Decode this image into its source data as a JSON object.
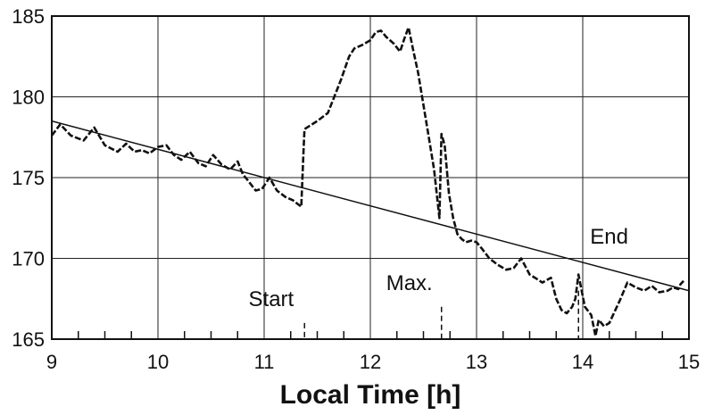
{
  "chart_data": {
    "type": "line",
    "title": "",
    "xlabel": "Local Time [h]",
    "ylabel": "",
    "xlim": [
      9,
      15
    ],
    "ylim": [
      165,
      185
    ],
    "x_ticks": [
      9,
      10,
      11,
      12,
      13,
      14,
      15
    ],
    "y_ticks": [
      165,
      170,
      175,
      180,
      185
    ],
    "grid": true,
    "legend": "none",
    "series": [
      {
        "style": "dashed",
        "x": [
          9.0,
          9.08,
          9.18,
          9.3,
          9.4,
          9.5,
          9.62,
          9.7,
          9.78,
          9.85,
          9.92,
          10.0,
          10.08,
          10.15,
          10.22,
          10.3,
          10.38,
          10.45,
          10.52,
          10.6,
          10.68,
          10.75,
          10.8,
          10.85,
          10.92,
          10.98,
          11.05,
          11.12,
          11.2,
          11.27,
          11.35,
          11.37,
          11.38,
          11.5,
          11.6,
          11.72,
          11.8,
          11.85,
          11.92,
          12.0,
          12.05,
          12.1,
          12.15,
          12.22,
          12.28,
          12.32,
          12.36,
          12.4,
          12.45,
          12.5,
          12.55,
          12.6,
          12.65,
          12.67,
          12.7,
          12.74,
          12.78,
          12.82,
          12.86,
          12.9,
          12.95,
          13.0,
          13.05,
          13.12,
          13.2,
          13.28,
          13.35,
          13.42,
          13.5,
          13.55,
          13.62,
          13.7,
          13.75,
          13.8,
          13.85,
          13.9,
          13.93,
          13.96,
          14.02,
          14.08,
          14.12,
          14.15,
          14.2,
          14.25,
          14.3,
          14.35,
          14.42,
          14.5,
          14.58,
          14.65,
          14.72,
          14.8,
          14.85,
          14.9,
          14.92,
          14.95
        ],
        "y": [
          177.6,
          178.3,
          177.6,
          177.3,
          178.1,
          177.0,
          176.6,
          177.1,
          176.6,
          176.7,
          176.5,
          176.9,
          177.0,
          176.4,
          176.1,
          176.6,
          175.9,
          175.7,
          176.4,
          175.8,
          175.5,
          176.0,
          175.2,
          174.8,
          174.2,
          174.3,
          175.0,
          174.2,
          173.8,
          173.6,
          173.2,
          176.5,
          178.0,
          178.5,
          179.0,
          181.0,
          182.5,
          183.0,
          183.2,
          183.5,
          184.0,
          184.1,
          183.7,
          183.3,
          182.8,
          183.6,
          184.3,
          183.0,
          181.5,
          179.5,
          177.5,
          175.5,
          172.5,
          177.7,
          177.0,
          174.0,
          172.5,
          171.5,
          171.2,
          171.0,
          171.1,
          171.0,
          170.6,
          170.0,
          169.6,
          169.3,
          169.4,
          170.0,
          169.0,
          168.8,
          168.5,
          168.8,
          167.5,
          166.8,
          166.6,
          167.0,
          167.5,
          169.0,
          167.0,
          166.5,
          165.2,
          166.2,
          165.8,
          166.0,
          166.7,
          167.4,
          168.5,
          168.2,
          168.0,
          168.3,
          167.9,
          168.0,
          168.2,
          168.1,
          168.4,
          168.6
        ]
      },
      {
        "style": "solid",
        "x": [
          9.0,
          15.0
        ],
        "y": [
          178.5,
          168.0
        ]
      }
    ],
    "annotations": [
      {
        "text": "Start",
        "x": 11.38
      },
      {
        "text": "Max.",
        "x": 12.67
      },
      {
        "text": "End",
        "x": 13.96
      }
    ]
  }
}
